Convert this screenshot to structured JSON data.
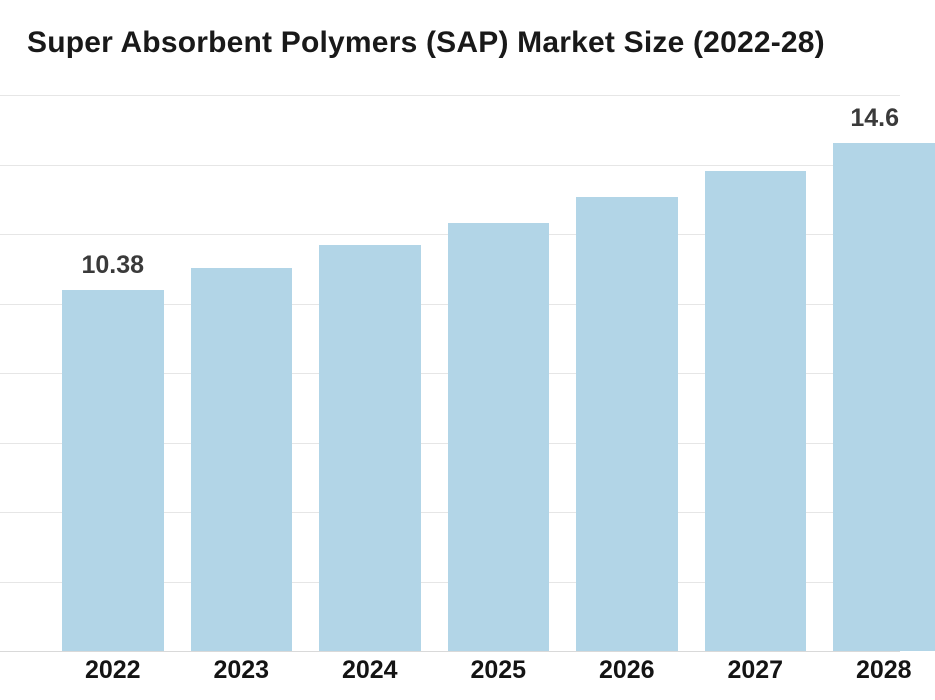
{
  "page": {
    "title": "Super Absorbent Polymers (SAP) Market Size (2022-28)"
  },
  "chart_data": {
    "type": "bar",
    "title": "Super Absorbent Polymers (SAP) Market Size (2022-28)",
    "categories": [
      "2022",
      "2023",
      "2024",
      "2025",
      "2026",
      "2027",
      "2028"
    ],
    "values": [
      10.38,
      11.02,
      11.68,
      12.33,
      13.06,
      13.82,
      14.63
    ],
    "value_labels": [
      "10.38",
      "",
      "",
      "",
      "",
      "",
      "14.6"
    ],
    "xlabel": "",
    "ylabel": "",
    "ylim": [
      0,
      16
    ],
    "gridline_step": 2,
    "grid": true,
    "legend": false,
    "y_axis_labels_visible": false,
    "colors": {
      "bar": "#b2d5e7",
      "title": "#191919",
      "value_label": "#3a3a3a",
      "x_label": "#141414",
      "gridline": "#e6e6e6",
      "axis_line": "#d9d9d9",
      "background": "#ffffff"
    }
  }
}
